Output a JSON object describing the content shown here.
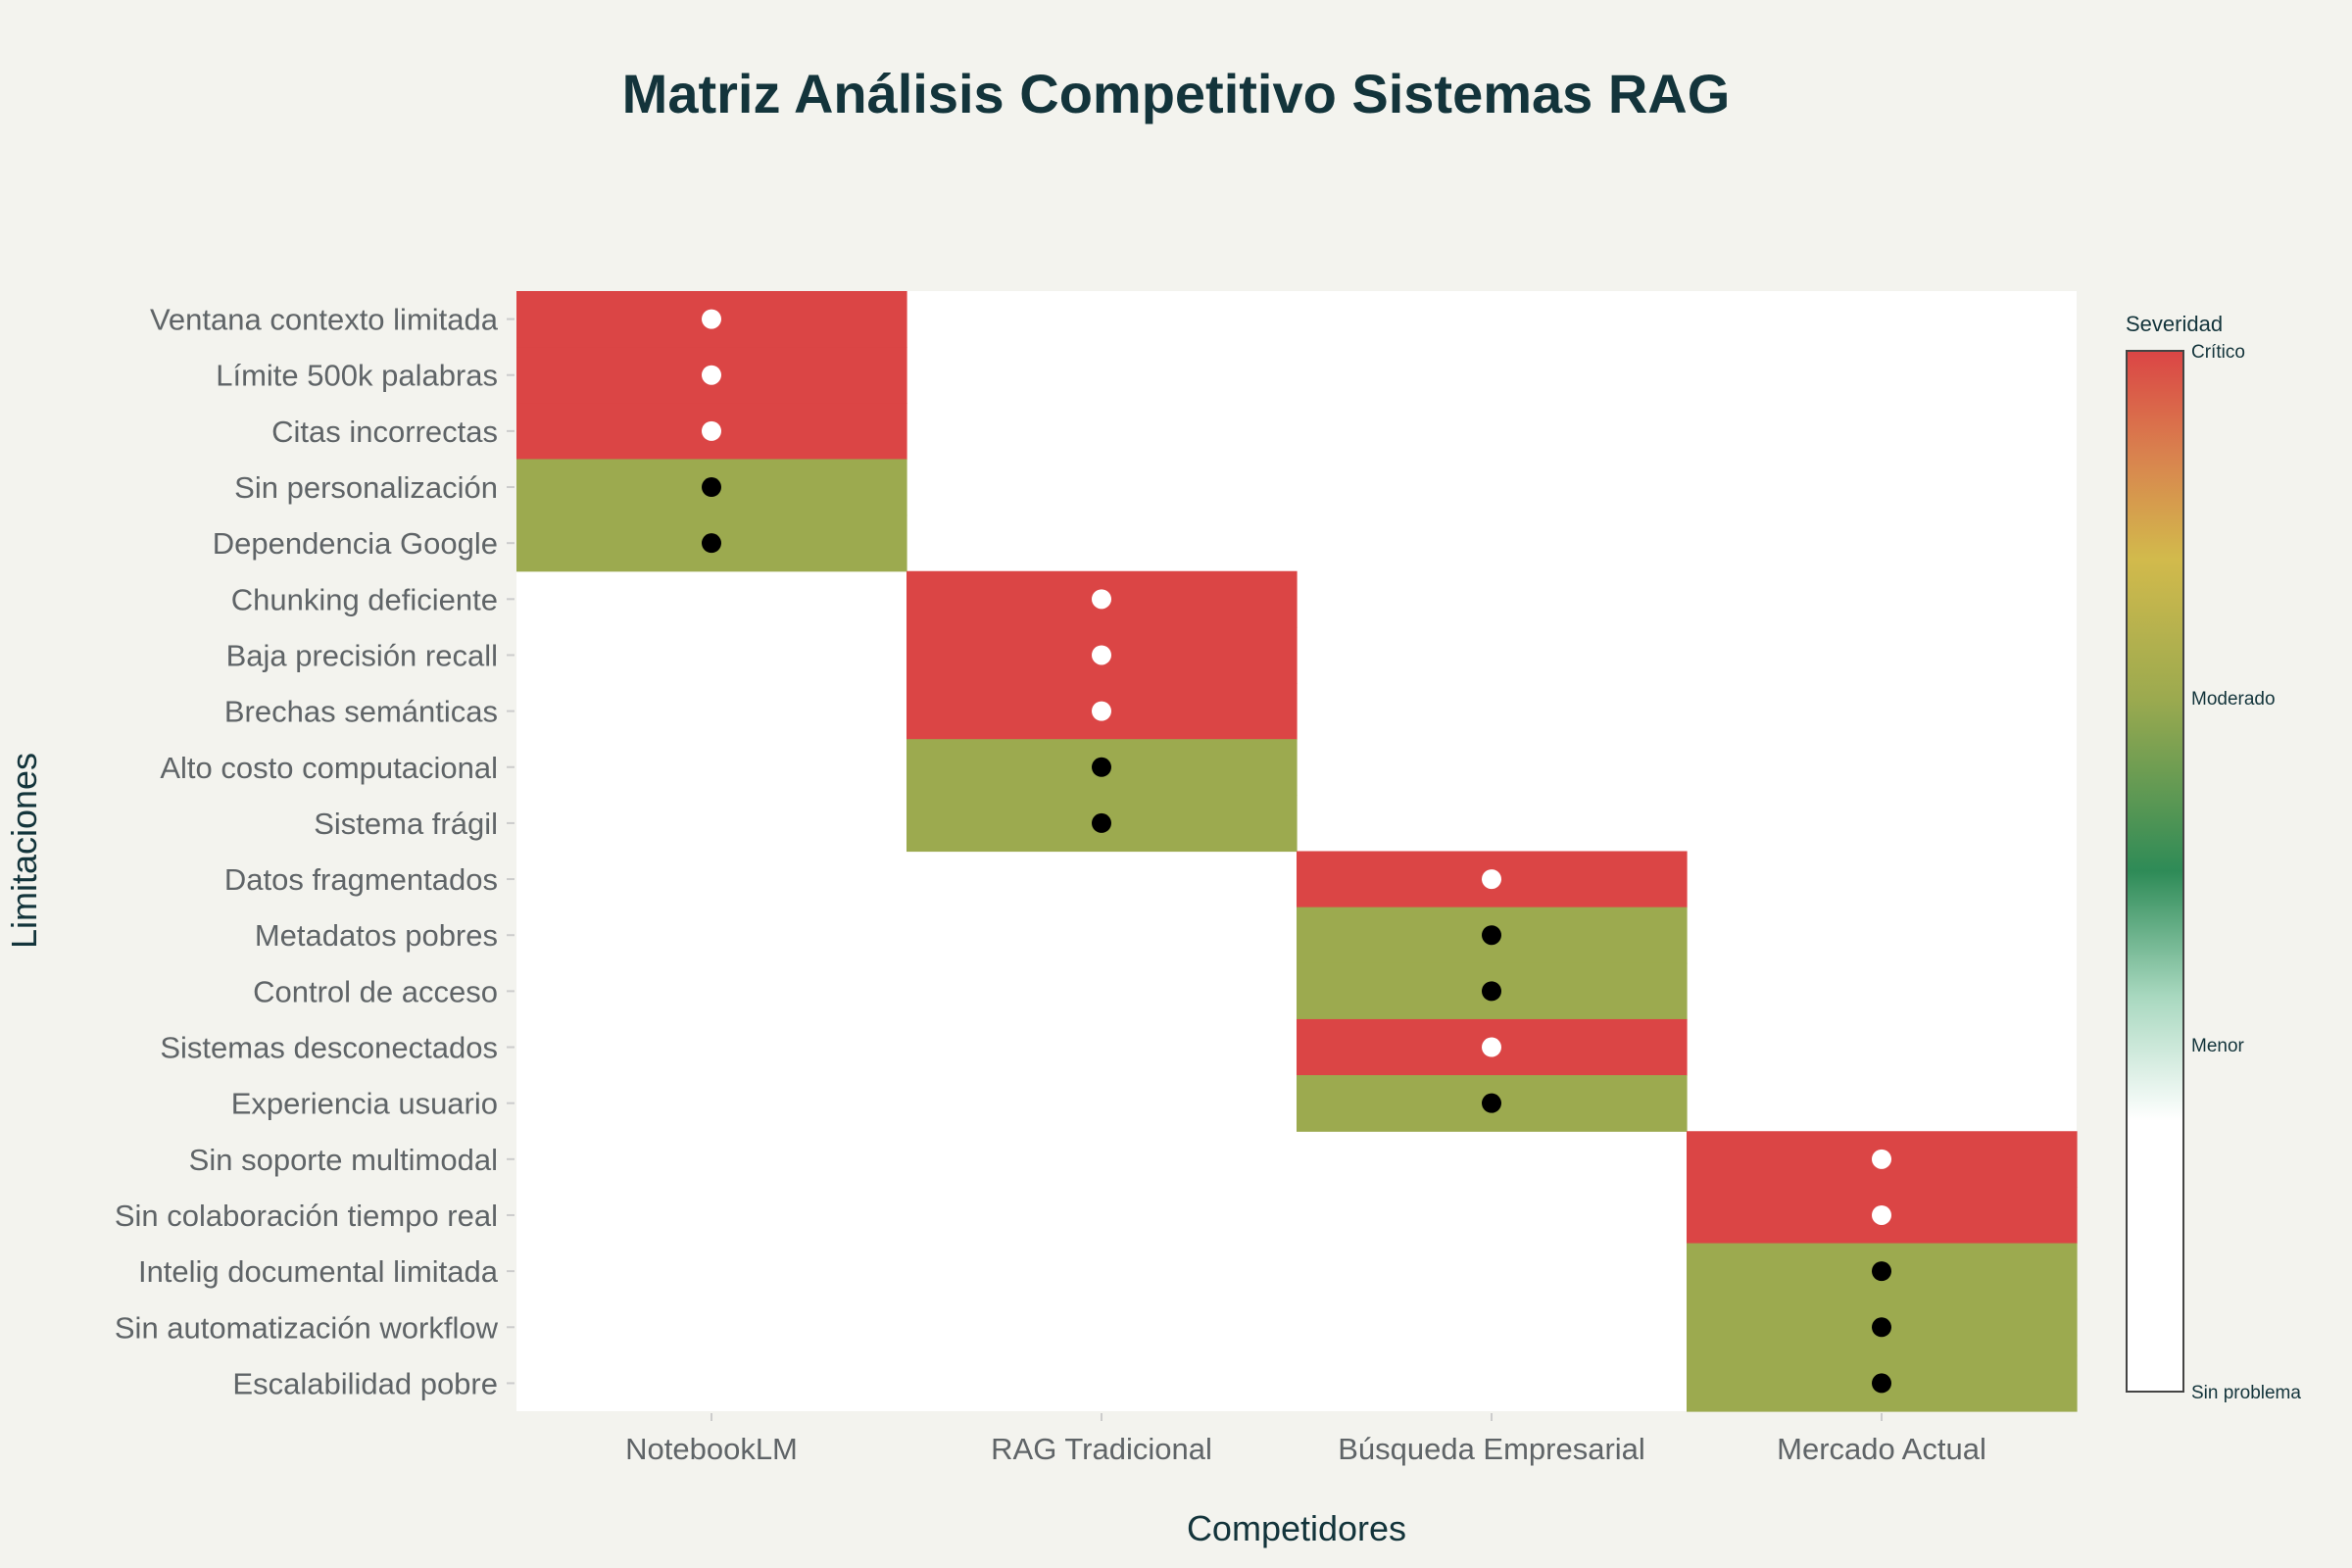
{
  "chart_data": {
    "type": "heatmap",
    "title": "Matriz Análisis Competitivo Sistemas RAG",
    "xlabel": "Competidores",
    "ylabel": "Limitaciones",
    "categories": [
      "NotebookLM",
      "RAG Tradicional",
      "Búsqueda Empresarial",
      "Mercado Actual"
    ],
    "rows": [
      {
        "label": "Ventana contexto limitada",
        "competitor": 0,
        "value": 3
      },
      {
        "label": "Límite 500k palabras",
        "competitor": 0,
        "value": 3
      },
      {
        "label": "Citas incorrectas",
        "competitor": 0,
        "value": 3
      },
      {
        "label": "Sin personalización",
        "competitor": 0,
        "value": 2
      },
      {
        "label": "Dependencia Google",
        "competitor": 0,
        "value": 2
      },
      {
        "label": "Chunking deficiente",
        "competitor": 1,
        "value": 3
      },
      {
        "label": "Baja precisión recall",
        "competitor": 1,
        "value": 3
      },
      {
        "label": "Brechas semánticas",
        "competitor": 1,
        "value": 3
      },
      {
        "label": "Alto costo computacional",
        "competitor": 1,
        "value": 2
      },
      {
        "label": "Sistema frágil",
        "competitor": 1,
        "value": 2
      },
      {
        "label": "Datos fragmentados",
        "competitor": 2,
        "value": 3
      },
      {
        "label": "Metadatos pobres",
        "competitor": 2,
        "value": 2
      },
      {
        "label": "Control de acceso",
        "competitor": 2,
        "value": 2
      },
      {
        "label": "Sistemas desconectados",
        "competitor": 2,
        "value": 3
      },
      {
        "label": "Experiencia usuario",
        "competitor": 2,
        "value": 2
      },
      {
        "label": "Sin soporte multimodal",
        "competitor": 3,
        "value": 3
      },
      {
        "label": "Sin colaboración tiempo real",
        "competitor": 3,
        "value": 3
      },
      {
        "label": "Intelig documental limitada",
        "competitor": 3,
        "value": 2
      },
      {
        "label": "Sin automatización workflow",
        "competitor": 3,
        "value": 2
      },
      {
        "label": "Escalabilidad pobre",
        "competitor": 3,
        "value": 2
      }
    ],
    "colorbar": {
      "title": "Severidad",
      "range": [
        0,
        3
      ],
      "ticks": [
        {
          "value": 0,
          "label": "Sin problema"
        },
        {
          "value": 1,
          "label": "Menor"
        },
        {
          "value": 2,
          "label": "Moderado"
        },
        {
          "value": 3,
          "label": "Crítico"
        }
      ]
    },
    "colors": {
      "critical": "#db4545",
      "moderate": "#9caa4f",
      "none": "#ffffff",
      "marker_on_critical": "#ffffff",
      "marker_on_moderate": "#000000"
    }
  }
}
